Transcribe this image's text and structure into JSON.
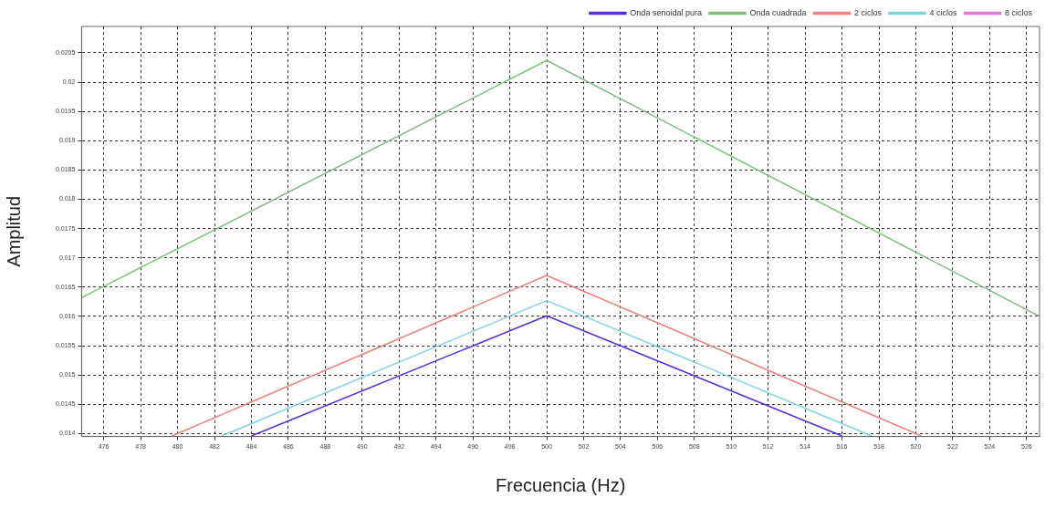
{
  "chart_data": {
    "type": "line",
    "xlabel": "Frecuencia (Hz)",
    "ylabel": "Amplitud",
    "xlim": [
      474.8,
      526.7
    ],
    "xticks": [
      476,
      478,
      480,
      482,
      484,
      486,
      488,
      490,
      492,
      494,
      496,
      498,
      500,
      502,
      504,
      506,
      508,
      510,
      512,
      514,
      516,
      518,
      520,
      522,
      524,
      526
    ],
    "ylim": [
      0.01395,
      0.02095
    ],
    "yticks": [
      0.014,
      0.0145,
      0.015,
      0.0155,
      0.016,
      0.0165,
      0.017,
      0.0175,
      0.018,
      0.0185,
      0.019,
      0.0195,
      0.02,
      0.0205
    ],
    "grid": true,
    "legend": "top right",
    "series": [
      {
        "name": "Onda senoidal pura",
        "color": "#5a2de0",
        "x": [
          484,
          500,
          516
        ],
        "values": [
          0.01396,
          0.01601,
          0.01396
        ]
      },
      {
        "name": "Onda cuadrada",
        "color": "#7fbf7f",
        "x": [
          474.8,
          500,
          526.7
        ],
        "values": [
          0.01632,
          0.02037,
          0.016
        ]
      },
      {
        "name": "2 ciclos",
        "color": "#f08080",
        "x": [
          479.7,
          500,
          520.3
        ],
        "values": [
          0.01396,
          0.0167,
          0.01396
        ]
      },
      {
        "name": "4 ciclos",
        "color": "#80d4dc",
        "x": [
          482.4,
          500,
          517.6
        ],
        "values": [
          0.01396,
          0.01627,
          0.01396
        ]
      },
      {
        "name": "8 ciclos",
        "color": "#dd77dd",
        "values": [
          null,
          null,
          null
        ]
      }
    ]
  }
}
